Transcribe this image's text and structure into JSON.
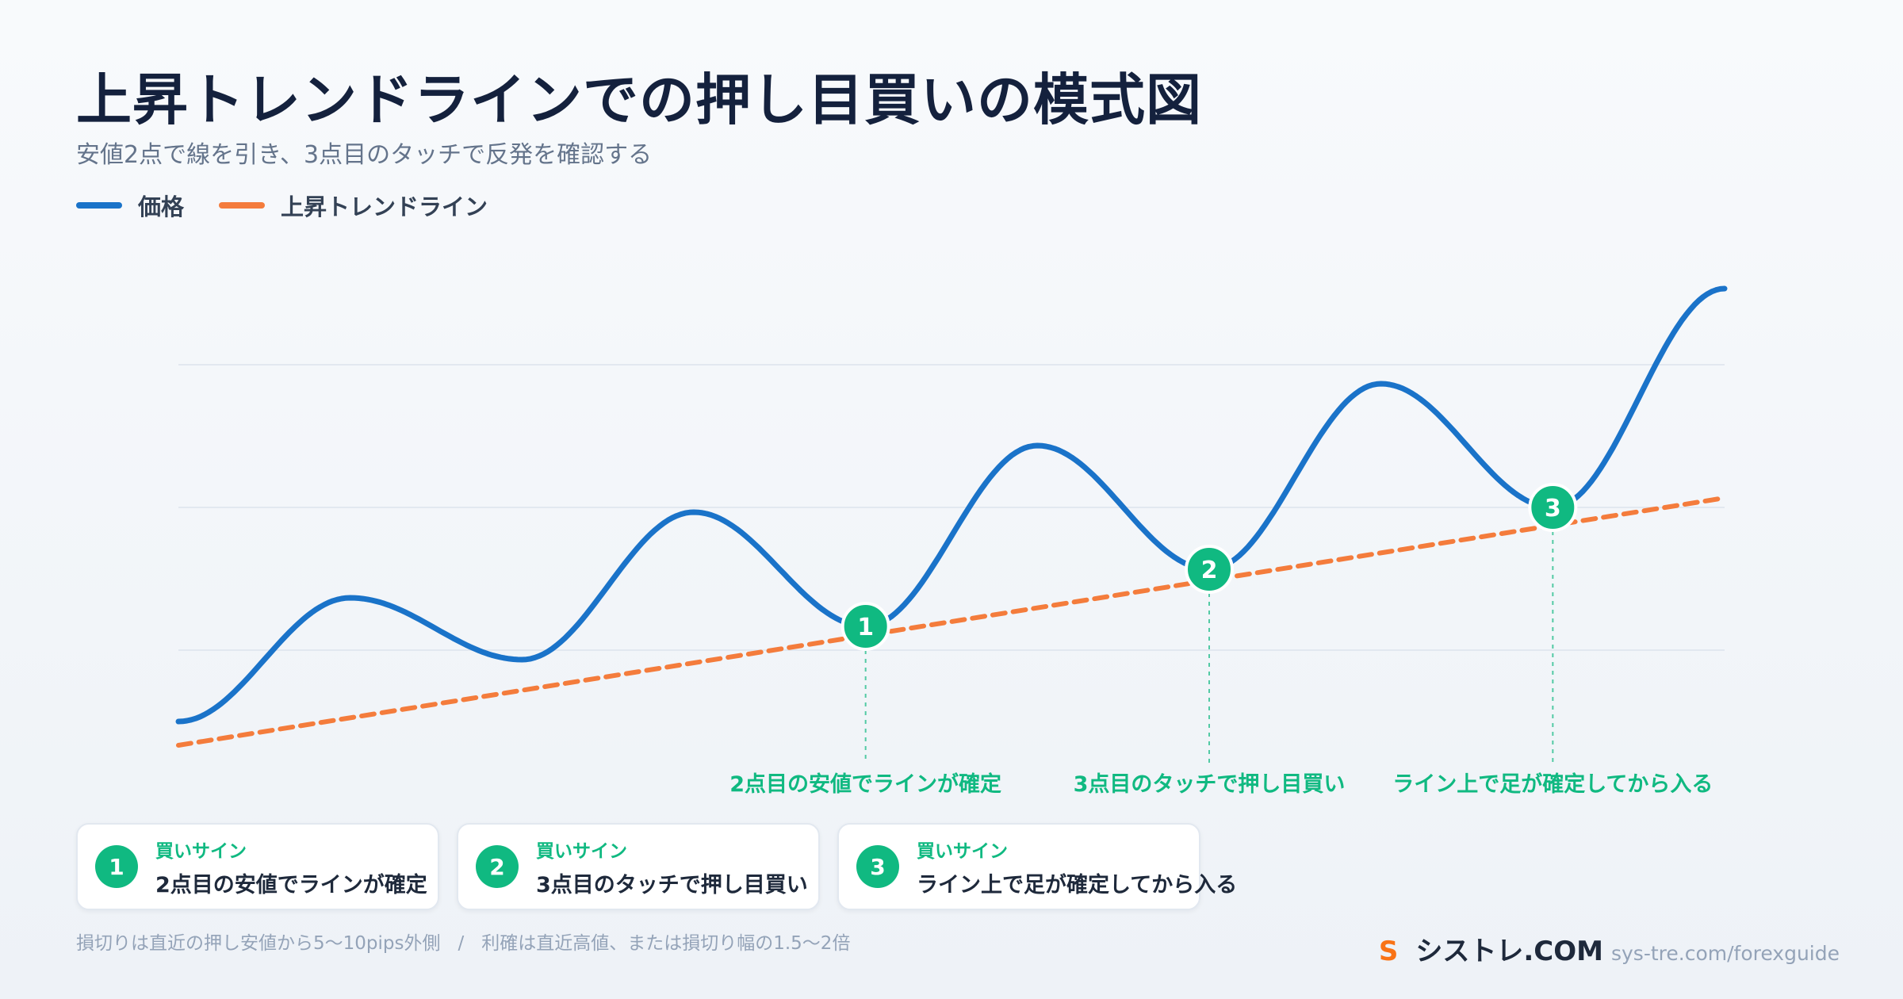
{
  "header": {
    "title": "上昇トレンドラインでの押し目買いの模式図",
    "subtitle": "安値2点で線を引き、3点目のタッチで反発を確認する"
  },
  "legend": {
    "price_label": "価格",
    "trendline_label": "上昇トレンドライン"
  },
  "colors": {
    "price": "#1a73c9",
    "trendline": "#f47c3c",
    "accent": "#10b981",
    "grid": "#e2e8f0"
  },
  "chart_data": {
    "type": "line",
    "series": [
      {
        "name": "価格",
        "x": [
          0,
          1,
          2,
          3,
          4,
          5,
          6,
          7,
          8,
          9
        ],
        "values": [
          15,
          41,
          28,
          59,
          35,
          73,
          47,
          86,
          60,
          106
        ]
      },
      {
        "name": "上昇トレンドライン",
        "x": [
          0,
          9
        ],
        "values": [
          10,
          62
        ]
      }
    ],
    "markers": [
      {
        "label": "1",
        "x": 4,
        "y": 35,
        "annotation": "2点目の安値でラインが確定"
      },
      {
        "label": "2",
        "x": 6,
        "y": 47,
        "annotation": "3点目のタッチで押し目買い"
      },
      {
        "label": "3",
        "x": 8,
        "y": 60,
        "annotation": "ライン上で足が確定してから入る"
      }
    ],
    "grid": true,
    "ylim": [
      0,
      120
    ]
  },
  "cards": [
    {
      "num": "1",
      "tag": "買いサイン",
      "text": "2点目の安値でラインが確定"
    },
    {
      "num": "2",
      "tag": "買いサイン",
      "text": "3点目のタッチで押し目買い"
    },
    {
      "num": "3",
      "tag": "買いサイン",
      "text": "ライン上で足が確定してから入る"
    }
  ],
  "footer": {
    "note_left": "損切りは直近の押し安値から5〜10pips外側",
    "separator": "/",
    "note_right": "利確は直近高値、または損切り幅の1.5〜2倍",
    "brand_logo": "S",
    "brand_name": "シストレ.COM",
    "brand_url": "sys-tre.com/forexguide"
  }
}
